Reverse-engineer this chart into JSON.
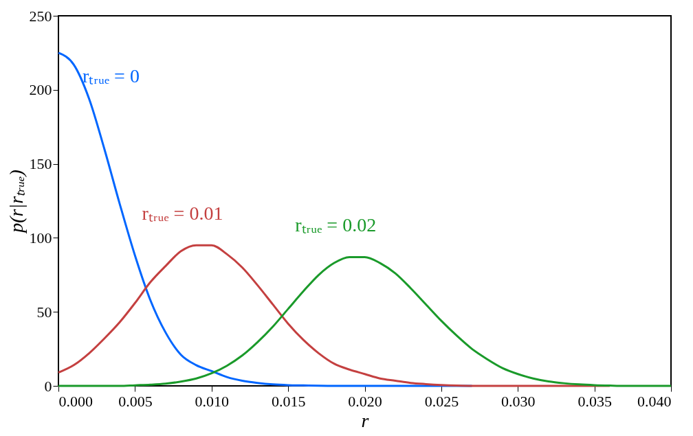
{
  "chart_data": {
    "type": "line",
    "xlabel": "r",
    "ylabel": "p(r|rₜᵣᵤₑ)",
    "x": [
      0,
      0.001,
      0.002,
      0.003,
      0.004,
      0.005,
      0.006,
      0.007,
      0.008,
      0.009,
      0.01,
      0.011,
      0.012,
      0.013,
      0.014,
      0.015,
      0.016,
      0.017,
      0.018,
      0.019,
      0.02,
      0.021,
      0.022,
      0.023,
      0.024,
      0.025,
      0.026,
      0.027,
      0.028,
      0.029,
      0.03,
      0.031,
      0.032,
      0.033,
      0.034,
      0.035,
      0.036,
      0.037,
      0.038,
      0.039,
      0.04
    ],
    "series": [
      {
        "name": "rₜᵣᵤₑ = 0",
        "color": "#0066ff",
        "values": [
          225,
          217,
          194,
          160,
          123,
          88,
          58,
          36,
          21,
          14,
          10,
          6,
          3.5,
          2,
          1,
          0.5,
          0.3,
          0.1,
          0,
          0,
          0,
          0,
          0,
          0,
          0,
          0,
          0,
          0,
          null,
          null,
          null,
          null,
          null,
          null,
          null,
          null,
          null,
          null,
          null,
          null,
          null
        ]
      },
      {
        "name": "rₜᵣᵤₑ = 0.01",
        "color": "#c44040",
        "values": [
          9,
          14,
          22,
          32,
          43,
          56,
          70,
          81,
          91,
          95,
          95,
          89,
          80,
          68,
          55,
          42,
          31,
          22,
          15,
          11,
          8,
          5,
          3.5,
          2,
          1.2,
          0.6,
          0.2,
          0,
          0,
          0,
          0,
          0,
          0,
          0,
          0,
          0,
          0,
          null,
          null,
          null,
          null
        ]
      },
      {
        "name": "rₜᵣᵤₑ = 0.02",
        "color": "#1a9a2a",
        "values": [
          0,
          0,
          0,
          0,
          0,
          0.4,
          0.8,
          1.5,
          2.9,
          5,
          8.5,
          13.6,
          20.5,
          29.5,
          40,
          52,
          64,
          75,
          83,
          87,
          87,
          83,
          76,
          66,
          55,
          44,
          34,
          25,
          18,
          12,
          8,
          5,
          3,
          1.8,
          1,
          0.5,
          0.2,
          0,
          0,
          0,
          0
        ]
      }
    ],
    "xlim": [
      0,
      0.04
    ],
    "xticks": [
      {
        "value": 0,
        "label": "0.000"
      },
      {
        "value": 0.005,
        "label": "0.005"
      },
      {
        "value": 0.01,
        "label": "0.010"
      },
      {
        "value": 0.015,
        "label": "0.015"
      },
      {
        "value": 0.02,
        "label": "0.020"
      },
      {
        "value": 0.025,
        "label": "0.025"
      },
      {
        "value": 0.03,
        "label": "0.030"
      },
      {
        "value": 0.035,
        "label": "0.035"
      },
      {
        "value": 0.04,
        "label": "0.040"
      }
    ],
    "ylim": [
      0,
      250
    ],
    "yticks": [
      0,
      50,
      100,
      150,
      200,
      250
    ],
    "grid": false
  }
}
